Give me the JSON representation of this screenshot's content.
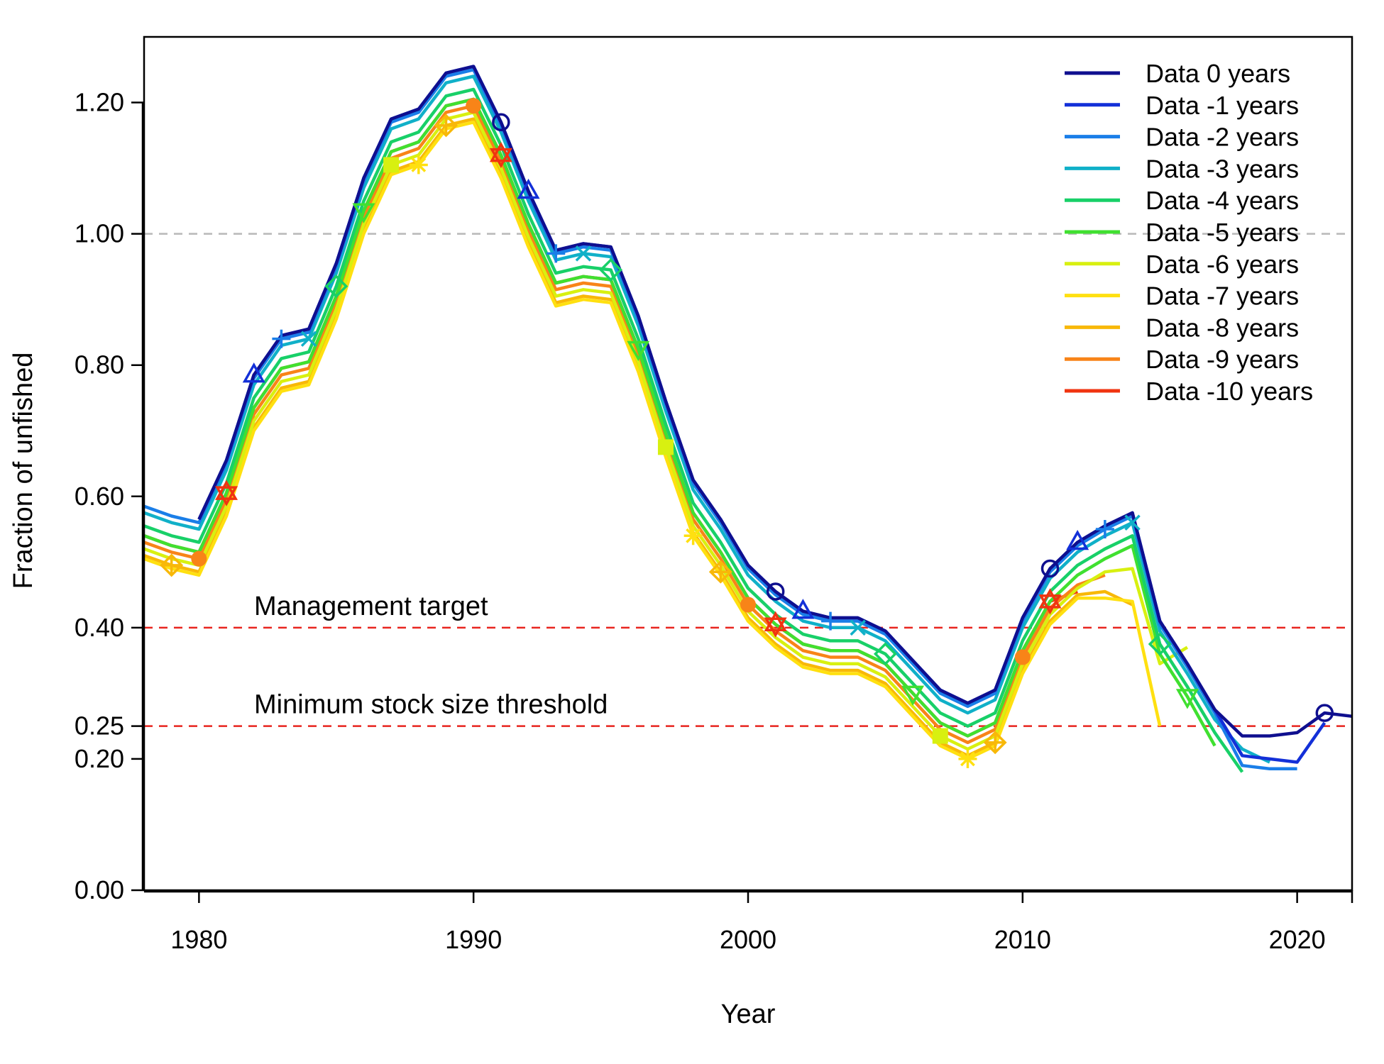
{
  "chart_data": {
    "type": "line",
    "xlabel": "Year",
    "ylabel": "Fraction of unfished",
    "xlim": [
      1978,
      2022
    ],
    "ylim": [
      0,
      1.3
    ],
    "x_ticks": [
      1980,
      1990,
      2000,
      2010,
      2020
    ],
    "y_ticks": [
      0,
      0.2,
      0.25,
      0.4,
      0.6,
      0.8,
      1.0,
      1.2
    ],
    "y_tick_labels": [
      "0.00",
      "0.20",
      "0.25",
      "0.40",
      "0.60",
      "0.80",
      "1.00",
      "1.20"
    ],
    "grid": false,
    "legend_position": "top-right",
    "reference_lines": [
      {
        "y": 1.0,
        "label": "",
        "color": "#b8b8b8",
        "style": "dashed"
      },
      {
        "y": 0.4,
        "label": "Management target",
        "color": "#e8251f",
        "style": "dashed"
      },
      {
        "y": 0.25,
        "label": "Minimum stock size threshold",
        "color": "#e8251f",
        "style": "dashed"
      }
    ],
    "base_trajectory": {
      "x": [
        1978,
        1979,
        1980,
        1981,
        1982,
        1983,
        1984,
        1985,
        1986,
        1987,
        1988,
        1989,
        1990,
        1991,
        1992,
        1993,
        1994,
        1995,
        1996,
        1997,
        1998,
        1999,
        2000,
        2001,
        2002,
        2003,
        2004,
        2005,
        2006,
        2007,
        2008,
        2009,
        2010,
        2011,
        2012,
        2013,
        2014,
        2015,
        2016,
        2017,
        2018,
        2019,
        2020,
        2021,
        2022
      ],
      "y": [
        0.59,
        0.575,
        0.565,
        0.655,
        0.785,
        0.845,
        0.855,
        0.955,
        1.085,
        1.175,
        1.19,
        1.245,
        1.255,
        1.17,
        1.065,
        0.975,
        0.985,
        0.98,
        0.875,
        0.745,
        0.625,
        0.565,
        0.495,
        0.455,
        0.425,
        0.415,
        0.415,
        0.395,
        0.35,
        0.305,
        0.285,
        0.305,
        0.415,
        0.49,
        0.53,
        0.555,
        0.575,
        0.41,
        0.345,
        0.275,
        0.235,
        0.235,
        0.24,
        0.27,
        0.265
      ]
    },
    "series": [
      {
        "name": "Data 0 years",
        "color": "#0f0f8f",
        "offset": 0.0,
        "min_year": 1980,
        "end_year": 2022,
        "marker": "circle",
        "marker_years": [
          1991,
          2001,
          2011,
          2021
        ]
      },
      {
        "name": "Data -1 years",
        "color": "#1330d8",
        "offset": 0.0,
        "min_year": 1980,
        "end_year": 2021,
        "end_adjust": [
          0,
          -0.03,
          -0.035,
          -0.045,
          -0.015
        ],
        "marker": "triangle-up",
        "marker_years": [
          1982,
          1992,
          2002,
          2012
        ]
      },
      {
        "name": "Data -2 years",
        "color": "#1a7ee8",
        "offset": -0.005,
        "min_year": 1978,
        "end_year": 2020,
        "end_adjust": [
          0,
          -0.04,
          -0.045,
          -0.05
        ],
        "marker": "plus",
        "marker_years": [
          1983,
          1993,
          2003,
          2013
        ]
      },
      {
        "name": "Data -3 years",
        "color": "#10b0c8",
        "offset": -0.015,
        "min_year": 1978,
        "end_year": 2019,
        "end_adjust": [
          0,
          -0.005,
          -0.025
        ],
        "marker": "cross",
        "marker_years": [
          1984,
          1994,
          2004,
          2014
        ]
      },
      {
        "name": "Data -4 years",
        "color": "#18d068",
        "offset": -0.035,
        "min_year": 1978,
        "end_year": 2018,
        "end_adjust": [
          0,
          -0.02
        ],
        "marker": "diamond",
        "marker_years": [
          1985,
          1995,
          2005,
          2015
        ]
      },
      {
        "name": "Data -5 years",
        "color": "#40e030",
        "offset": -0.05,
        "min_year": 1978,
        "end_year": 2017,
        "end_adjust": [
          0,
          -0.005
        ],
        "marker": "triangle-down",
        "marker_years": [
          1986,
          1996,
          2006,
          2016
        ]
      },
      {
        "name": "Data -6 years",
        "color": "#d8f010",
        "offset": -0.07,
        "min_year": 1978,
        "end_year": 2016,
        "end_adjust": [
          0,
          -0.015,
          0.005,
          0.095
        ],
        "marker": "square",
        "marker_years": [
          1987,
          1997,
          2007
        ]
      },
      {
        "name": "Data -7 years",
        "color": "#ffe010",
        "offset": -0.085,
        "min_year": 1978,
        "end_year": 2015,
        "end_adjust": [
          0,
          -0.025,
          -0.05,
          -0.075
        ],
        "marker": "asterisk",
        "marker_years": [
          1988,
          1998,
          2008
        ]
      },
      {
        "name": "Data -8 years",
        "color": "#f8b808",
        "offset": -0.08,
        "min_year": 1978,
        "end_year": 2014,
        "end_adjust": [
          0,
          -0.02,
          -0.06
        ],
        "marker": "diamond-plus",
        "marker_years": [
          1979,
          1989,
          1999,
          2009
        ]
      },
      {
        "name": "Data -9 years",
        "color": "#f88418",
        "offset": -0.06,
        "min_year": 1978,
        "end_year": 2013,
        "end_adjust": [
          0,
          -0.005,
          -0.015
        ],
        "marker": "filled-circle",
        "marker_years": [
          1980,
          1990,
          2000,
          2010
        ]
      },
      {
        "name": "Data -10 years",
        "color": "#f03410",
        "offset": -0.05,
        "min_year": 1978,
        "end_year": 2012,
        "end_adjust": [
          0,
          -0.025
        ],
        "marker": "star",
        "marker_years": [
          1981,
          1991,
          2001,
          2011
        ]
      }
    ]
  }
}
